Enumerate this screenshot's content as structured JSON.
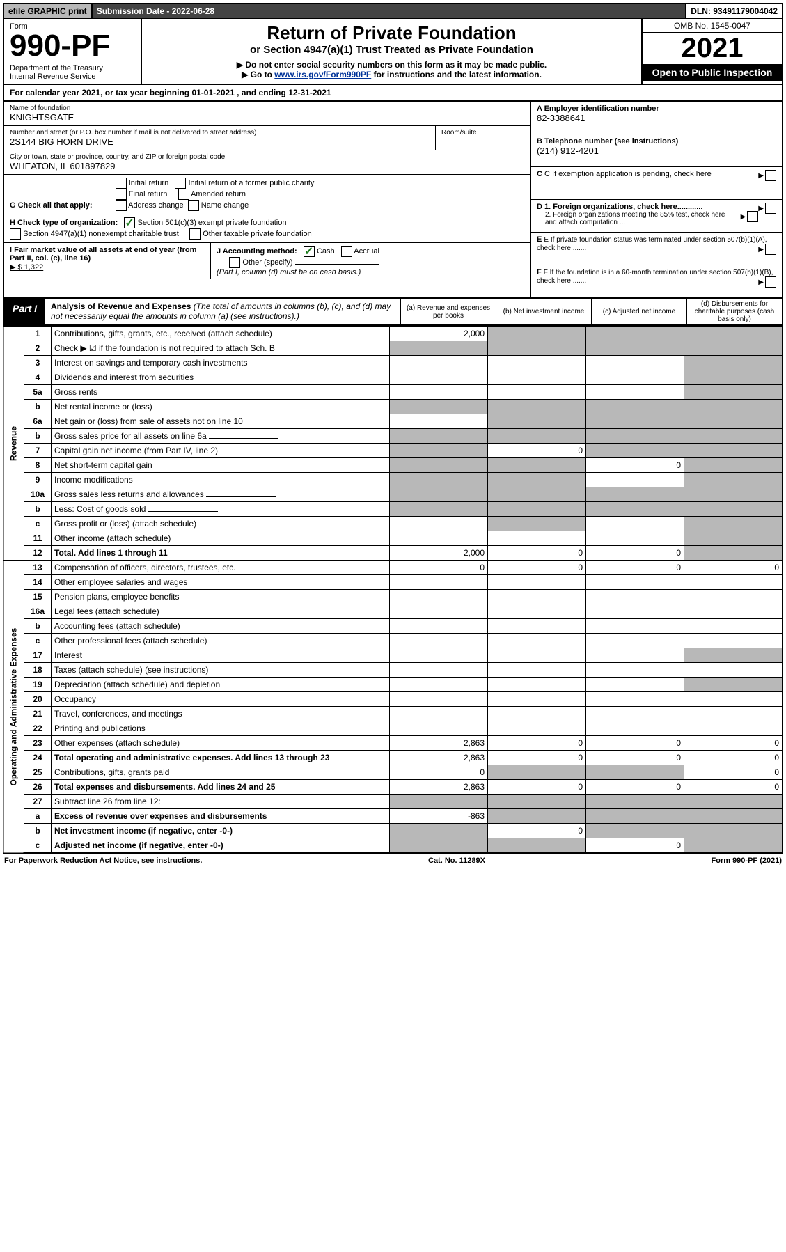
{
  "top": {
    "efile": "efile GRAPHIC print",
    "submission": "Submission Date - 2022-06-28",
    "dln": "DLN: 93491179004042"
  },
  "hdr": {
    "form_label": "Form",
    "form_no": "990-PF",
    "dept": "Department of the Treasury",
    "irs": "Internal Revenue Service",
    "title": "Return of Private Foundation",
    "sub": "or Section 4947(a)(1) Trust Treated as Private Foundation",
    "note1": "▶ Do not enter social security numbers on this form as it may be made public.",
    "note2_a": "▶ Go to ",
    "note2_link": "www.irs.gov/Form990PF",
    "note2_b": " for instructions and the latest information.",
    "omb": "OMB No. 1545-0047",
    "year": "2021",
    "open": "Open to Public Inspection"
  },
  "cal": {
    "pre": "For calendar year 2021, or tax year beginning ",
    "begin": "01-01-2021",
    "mid": " , and ending ",
    "end": "12-31-2021"
  },
  "info": {
    "name_label": "Name of foundation",
    "name": "KNIGHTSGATE",
    "addr_label": "Number and street (or P.O. box number if mail is not delivered to street address)",
    "addr": "2S144 BIG HORN DRIVE",
    "room_label": "Room/suite",
    "city_label": "City or town, state or province, country, and ZIP or foreign postal code",
    "city": "WHEATON, IL  601897829",
    "a_label": "A Employer identification number",
    "a_val": "82-3388641",
    "b_label": "B Telephone number (see instructions)",
    "b_val": "(214) 912-4201",
    "c_label": "C If exemption application is pending, check here",
    "g_label": "G Check all that apply:",
    "g_opts": [
      "Initial return",
      "Initial return of a former public charity",
      "Final return",
      "Amended return",
      "Address change",
      "Name change"
    ],
    "d1": "D 1. Foreign organizations, check here............",
    "d2": "2. Foreign organizations meeting the 85% test, check here and attach computation ...",
    "h_label": "H Check type of organization:",
    "h1": "Section 501(c)(3) exempt private foundation",
    "h2": "Section 4947(a)(1) nonexempt charitable trust",
    "h3": "Other taxable private foundation",
    "e_label": "E  If private foundation status was terminated under section 507(b)(1)(A), check here .......",
    "i_label": "I Fair market value of all assets at end of year (from Part II, col. (c), line 16)",
    "i_val": "▶ $  1,322",
    "j_label": "J Accounting method:",
    "j_cash": "Cash",
    "j_accr": "Accrual",
    "j_other": "Other (specify)",
    "j_note": "(Part I, column (d) must be on cash basis.)",
    "f_label": "F  If the foundation is in a 60-month termination under section 507(b)(1)(B), check here ......."
  },
  "part1": {
    "part": "Part I",
    "title": "Analysis of Revenue and Expenses",
    "title_note": " (The total of amounts in columns (b), (c), and (d) may not necessarily equal the amounts in column (a) (see instructions).)",
    "col_a": "(a)  Revenue and expenses per books",
    "col_b": "(b)  Net investment income",
    "col_c": "(c)  Adjusted net income",
    "col_d": "(d)  Disbursements for charitable purposes (cash basis only)"
  },
  "side": {
    "rev": "Revenue",
    "exp": "Operating and Administrative Expenses"
  },
  "rows": [
    {
      "n": "1",
      "t": "Contributions, gifts, grants, etc., received (attach schedule)",
      "a": "2,000",
      "b": "g",
      "c": "g",
      "d": "g"
    },
    {
      "n": "2",
      "t": "Check ▶ ☑ if the foundation is not required to attach Sch. B",
      "nb": true,
      "a": "g",
      "b": "g",
      "c": "g",
      "d": "g"
    },
    {
      "n": "3",
      "t": "Interest on savings and temporary cash investments",
      "a": "",
      "b": "",
      "c": "",
      "d": "g"
    },
    {
      "n": "4",
      "t": "Dividends and interest from securities",
      "a": "",
      "b": "",
      "c": "",
      "d": "g"
    },
    {
      "n": "5a",
      "t": "Gross rents",
      "a": "",
      "b": "",
      "c": "",
      "d": "g"
    },
    {
      "n": "b",
      "t": "Net rental income or (loss)",
      "a": "g",
      "b": "g",
      "c": "g",
      "d": "g",
      "inline": true
    },
    {
      "n": "6a",
      "t": "Net gain or (loss) from sale of assets not on line 10",
      "a": "",
      "b": "g",
      "c": "g",
      "d": "g"
    },
    {
      "n": "b",
      "t": "Gross sales price for all assets on line 6a",
      "a": "g",
      "b": "g",
      "c": "g",
      "d": "g",
      "inline": true
    },
    {
      "n": "7",
      "t": "Capital gain net income (from Part IV, line 2)",
      "a": "g",
      "b": "0",
      "c": "g",
      "d": "g"
    },
    {
      "n": "8",
      "t": "Net short-term capital gain",
      "a": "g",
      "b": "g",
      "c": "0",
      "d": "g"
    },
    {
      "n": "9",
      "t": "Income modifications",
      "a": "g",
      "b": "g",
      "c": "",
      "d": "g"
    },
    {
      "n": "10a",
      "t": "Gross sales less returns and allowances",
      "a": "g",
      "b": "g",
      "c": "g",
      "d": "g",
      "inline": true
    },
    {
      "n": "b",
      "t": "Less: Cost of goods sold",
      "a": "g",
      "b": "g",
      "c": "g",
      "d": "g",
      "inline": true
    },
    {
      "n": "c",
      "t": "Gross profit or (loss) (attach schedule)",
      "a": "",
      "b": "g",
      "c": "",
      "d": "g"
    },
    {
      "n": "11",
      "t": "Other income (attach schedule)",
      "a": "",
      "b": "",
      "c": "",
      "d": "g"
    },
    {
      "n": "12",
      "t": "Total. Add lines 1 through 11",
      "bold": true,
      "a": "2,000",
      "b": "0",
      "c": "0",
      "d": "g"
    }
  ],
  "exp_rows": [
    {
      "n": "13",
      "t": "Compensation of officers, directors, trustees, etc.",
      "a": "0",
      "b": "0",
      "c": "0",
      "d": "0"
    },
    {
      "n": "14",
      "t": "Other employee salaries and wages",
      "a": "",
      "b": "",
      "c": "",
      "d": ""
    },
    {
      "n": "15",
      "t": "Pension plans, employee benefits",
      "a": "",
      "b": "",
      "c": "",
      "d": ""
    },
    {
      "n": "16a",
      "t": "Legal fees (attach schedule)",
      "a": "",
      "b": "",
      "c": "",
      "d": ""
    },
    {
      "n": "b",
      "t": "Accounting fees (attach schedule)",
      "a": "",
      "b": "",
      "c": "",
      "d": ""
    },
    {
      "n": "c",
      "t": "Other professional fees (attach schedule)",
      "a": "",
      "b": "",
      "c": "",
      "d": ""
    },
    {
      "n": "17",
      "t": "Interest",
      "a": "",
      "b": "",
      "c": "",
      "d": "g"
    },
    {
      "n": "18",
      "t": "Taxes (attach schedule) (see instructions)",
      "a": "",
      "b": "",
      "c": "",
      "d": ""
    },
    {
      "n": "19",
      "t": "Depreciation (attach schedule) and depletion",
      "a": "",
      "b": "",
      "c": "",
      "d": "g"
    },
    {
      "n": "20",
      "t": "Occupancy",
      "a": "",
      "b": "",
      "c": "",
      "d": ""
    },
    {
      "n": "21",
      "t": "Travel, conferences, and meetings",
      "a": "",
      "b": "",
      "c": "",
      "d": ""
    },
    {
      "n": "22",
      "t": "Printing and publications",
      "a": "",
      "b": "",
      "c": "",
      "d": ""
    },
    {
      "n": "23",
      "t": "Other expenses (attach schedule)",
      "a": "2,863",
      "b": "0",
      "c": "0",
      "d": "0"
    },
    {
      "n": "24",
      "t": "Total operating and administrative expenses. Add lines 13 through 23",
      "bold": true,
      "a": "2,863",
      "b": "0",
      "c": "0",
      "d": "0"
    },
    {
      "n": "25",
      "t": "Contributions, gifts, grants paid",
      "a": "0",
      "b": "g",
      "c": "g",
      "d": "0"
    },
    {
      "n": "26",
      "t": "Total expenses and disbursements. Add lines 24 and 25",
      "bold": true,
      "a": "2,863",
      "b": "0",
      "c": "0",
      "d": "0"
    },
    {
      "n": "27",
      "t": "Subtract line 26 from line 12:",
      "a": "g",
      "b": "g",
      "c": "g",
      "d": "g"
    },
    {
      "n": "a",
      "t": "Excess of revenue over expenses and disbursements",
      "bold": true,
      "a": "-863",
      "b": "g",
      "c": "g",
      "d": "g"
    },
    {
      "n": "b",
      "t": "Net investment income (if negative, enter -0-)",
      "bold": true,
      "a": "g",
      "b": "0",
      "c": "g",
      "d": "g"
    },
    {
      "n": "c",
      "t": "Adjusted net income (if negative, enter -0-)",
      "bold": true,
      "a": "g",
      "b": "g",
      "c": "0",
      "d": "g"
    }
  ],
  "footer": {
    "left": "For Paperwork Reduction Act Notice, see instructions.",
    "mid": "Cat. No. 11289X",
    "right": "Form 990-PF (2021)"
  },
  "colors": {
    "grey": "#b8b8b8",
    "dark": "#444444",
    "link": "#003399",
    "check": "#1a7a1a"
  }
}
